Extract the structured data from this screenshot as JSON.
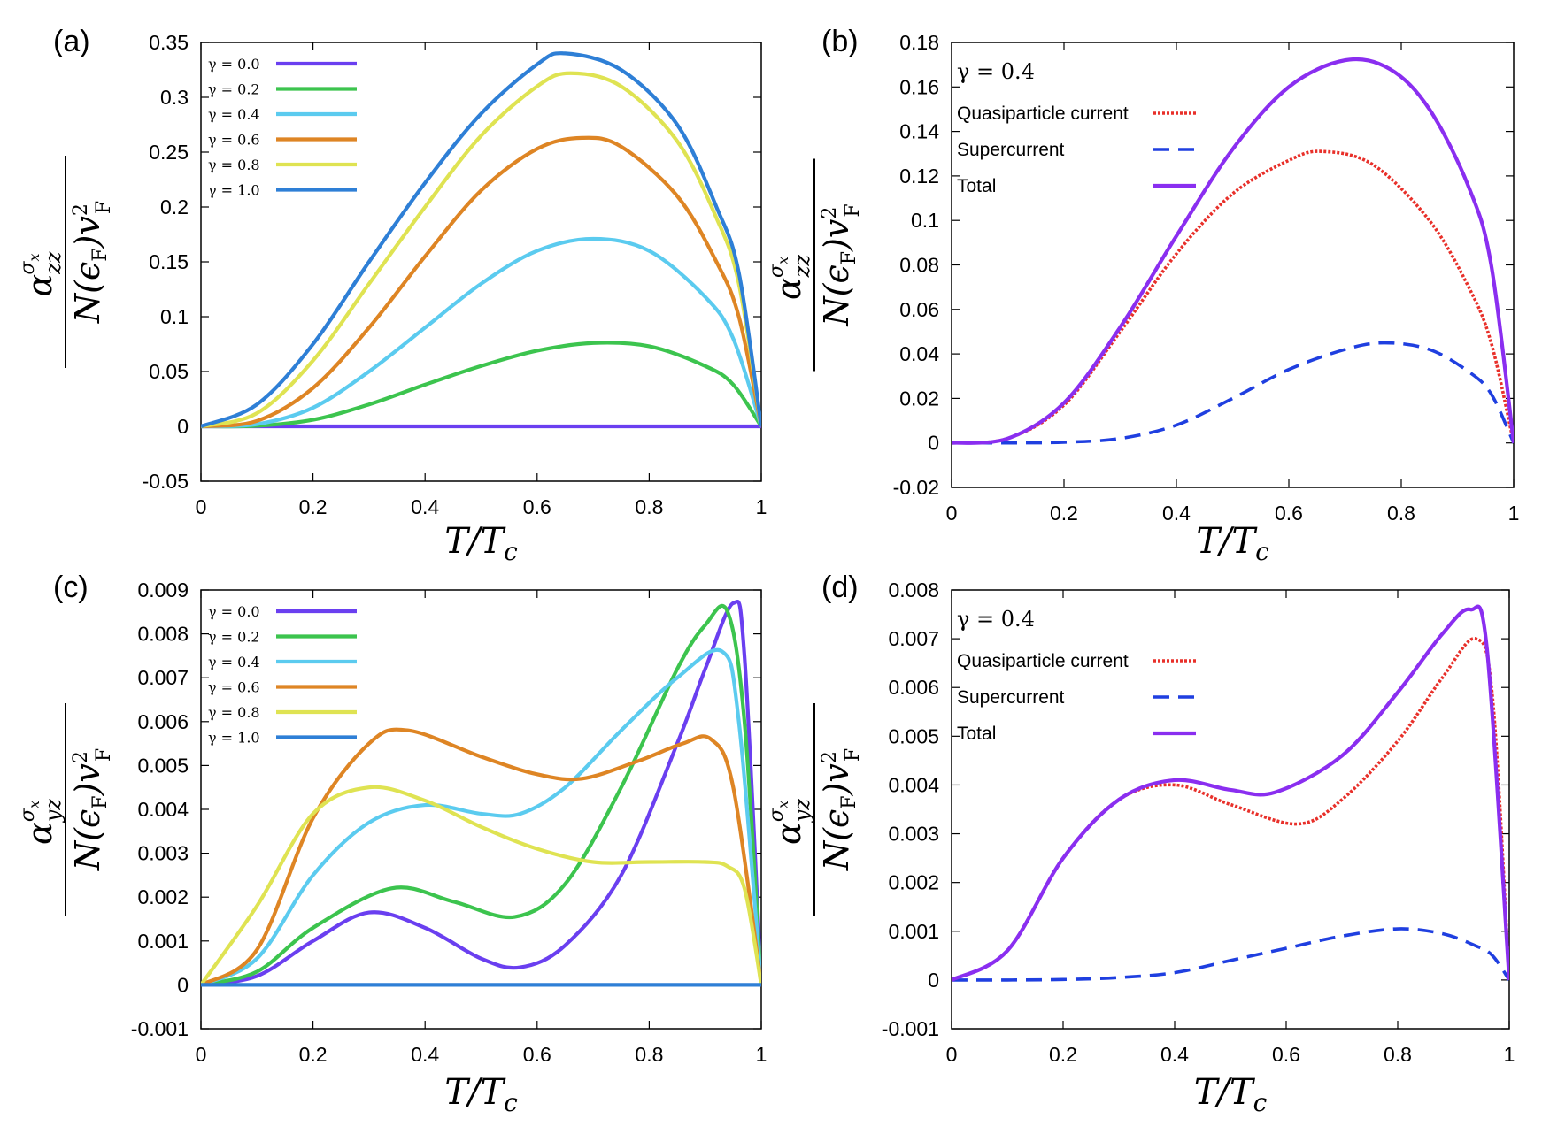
{
  "chart_data": [
    {
      "id": "a",
      "type": "line",
      "panel_label": "(a)",
      "xlabel": "T/Tc",
      "ylabel": "α_zz^σx / N(εF) vF²",
      "xlim": [
        0,
        1
      ],
      "ylim": [
        -0.05,
        0.35
      ],
      "xticks": [
        "0",
        "0.2",
        "0.4",
        "0.6",
        "0.8",
        "1"
      ],
      "yticks": [
        "-0.05",
        "0",
        "0.05",
        "0.1",
        "0.15",
        "0.2",
        "0.25",
        "0.3",
        "0.35"
      ],
      "legend_position": "top-left",
      "series": [
        {
          "name": "γ = 0.0",
          "color": "#6a3ff0",
          "dash": "solid",
          "x": [
            0,
            0.2,
            0.4,
            0.6,
            0.8,
            1.0
          ],
          "y": [
            0,
            0,
            0,
            0,
            0,
            0
          ]
        },
        {
          "name": "γ = 0.2",
          "color": "#3cc44e",
          "dash": "solid",
          "x": [
            0,
            0.1,
            0.2,
            0.3,
            0.4,
            0.5,
            0.6,
            0.7,
            0.8,
            0.9,
            0.95,
            1.0
          ],
          "y": [
            0,
            0.0005,
            0.006,
            0.02,
            0.038,
            0.055,
            0.069,
            0.076,
            0.073,
            0.055,
            0.038,
            0
          ]
        },
        {
          "name": "γ = 0.4",
          "color": "#5bcbef",
          "dash": "solid",
          "x": [
            0,
            0.1,
            0.2,
            0.3,
            0.4,
            0.5,
            0.6,
            0.7,
            0.8,
            0.9,
            0.95,
            1.0
          ],
          "y": [
            0,
            0.002,
            0.017,
            0.05,
            0.09,
            0.13,
            0.16,
            0.171,
            0.16,
            0.118,
            0.08,
            0
          ]
        },
        {
          "name": "γ = 0.6",
          "color": "#de8524",
          "dash": "solid",
          "x": [
            0,
            0.1,
            0.2,
            0.3,
            0.4,
            0.5,
            0.6,
            0.68,
            0.75,
            0.85,
            0.92,
            0.96,
            1.0
          ],
          "y": [
            0,
            0.005,
            0.035,
            0.09,
            0.155,
            0.215,
            0.253,
            0.263,
            0.255,
            0.21,
            0.15,
            0.1,
            0
          ]
        },
        {
          "name": "γ = 0.8",
          "color": "#dfe352",
          "dash": "solid",
          "x": [
            0,
            0.1,
            0.2,
            0.3,
            0.4,
            0.5,
            0.6,
            0.66,
            0.75,
            0.85,
            0.92,
            0.96,
            1.0
          ],
          "y": [
            0,
            0.012,
            0.06,
            0.13,
            0.2,
            0.265,
            0.31,
            0.322,
            0.31,
            0.26,
            0.19,
            0.13,
            0
          ]
        },
        {
          "name": "γ = 1.0",
          "color": "#2e7fd6",
          "dash": "solid",
          "x": [
            0,
            0.1,
            0.2,
            0.3,
            0.4,
            0.5,
            0.6,
            0.65,
            0.75,
            0.85,
            0.92,
            0.96,
            1.0
          ],
          "y": [
            0,
            0.02,
            0.075,
            0.15,
            0.222,
            0.285,
            0.33,
            0.34,
            0.325,
            0.275,
            0.2,
            0.14,
            0
          ]
        }
      ]
    },
    {
      "id": "b",
      "type": "line",
      "panel_label": "(b)",
      "note": "γ = 0.4",
      "xlabel": "T/Tc",
      "ylabel": "α_zz^σx / N(εF) vF²",
      "xlim": [
        0,
        1
      ],
      "ylim": [
        -0.02,
        0.18
      ],
      "xticks": [
        "0",
        "0.2",
        "0.4",
        "0.6",
        "0.8",
        "1"
      ],
      "yticks": [
        "-0.02",
        "0",
        "0.02",
        "0.04",
        "0.06",
        "0.08",
        "0.1",
        "0.12",
        "0.14",
        "0.16",
        "0.18"
      ],
      "legend_position": "top-left",
      "series": [
        {
          "name": "Quasiparticle current",
          "color": "#e8302a",
          "dash": "dotted",
          "x": [
            0,
            0.1,
            0.2,
            0.3,
            0.4,
            0.5,
            0.6,
            0.66,
            0.75,
            0.85,
            0.92,
            0.96,
            1.0
          ],
          "y": [
            0,
            0.002,
            0.017,
            0.05,
            0.085,
            0.112,
            0.127,
            0.131,
            0.125,
            0.1,
            0.07,
            0.045,
            0
          ]
        },
        {
          "name": "Supercurrent",
          "color": "#1f3fe0",
          "dash": "dashed",
          "x": [
            0,
            0.1,
            0.2,
            0.3,
            0.4,
            0.5,
            0.6,
            0.7,
            0.77,
            0.85,
            0.92,
            0.96,
            1.0
          ],
          "y": [
            0,
            0,
            0.0003,
            0.002,
            0.008,
            0.02,
            0.033,
            0.042,
            0.045,
            0.042,
            0.032,
            0.022,
            0
          ]
        },
        {
          "name": "Total",
          "color": "#8a2ef0",
          "dash": "solid",
          "x": [
            0,
            0.1,
            0.2,
            0.3,
            0.4,
            0.5,
            0.6,
            0.7,
            0.78,
            0.85,
            0.92,
            0.96,
            1.0
          ],
          "y": [
            0,
            0.002,
            0.018,
            0.052,
            0.093,
            0.132,
            0.16,
            0.172,
            0.168,
            0.15,
            0.115,
            0.08,
            0
          ]
        }
      ]
    },
    {
      "id": "c",
      "type": "line",
      "panel_label": "(c)",
      "xlabel": "T/Tc",
      "ylabel": "α_yz^σx / N(εF) vF²",
      "xlim": [
        0,
        1
      ],
      "ylim": [
        -0.001,
        0.009
      ],
      "xticks": [
        "0",
        "0.2",
        "0.4",
        "0.6",
        "0.8",
        "1"
      ],
      "yticks": [
        "-0.001",
        "0",
        "0.001",
        "0.002",
        "0.003",
        "0.004",
        "0.005",
        "0.006",
        "0.007",
        "0.008",
        "0.009"
      ],
      "legend_position": "top-left",
      "series": [
        {
          "name": "γ = 0.0",
          "color": "#6a3ff0",
          "dash": "solid",
          "x": [
            0,
            0.1,
            0.2,
            0.3,
            0.4,
            0.5,
            0.57,
            0.65,
            0.75,
            0.85,
            0.9,
            0.95,
            0.97,
            1.0
          ],
          "y": [
            0,
            0.0002,
            0.001,
            0.00165,
            0.0013,
            0.0006,
            0.0004,
            0.0009,
            0.0025,
            0.0055,
            0.0072,
            0.0087,
            0.0075,
            0
          ]
        },
        {
          "name": "γ = 0.2",
          "color": "#3cc44e",
          "dash": "solid",
          "x": [
            0,
            0.1,
            0.2,
            0.34,
            0.45,
            0.56,
            0.65,
            0.75,
            0.85,
            0.9,
            0.94,
            0.97,
            1.0
          ],
          "y": [
            0,
            0.0003,
            0.0013,
            0.0022,
            0.0019,
            0.00155,
            0.0023,
            0.0045,
            0.0072,
            0.0082,
            0.0085,
            0.006,
            0
          ]
        },
        {
          "name": "γ = 0.4",
          "color": "#5bcbef",
          "dash": "solid",
          "x": [
            0,
            0.1,
            0.2,
            0.3,
            0.4,
            0.5,
            0.57,
            0.65,
            0.75,
            0.85,
            0.93,
            0.96,
            1.0
          ],
          "y": [
            0,
            0.0006,
            0.0025,
            0.0037,
            0.0041,
            0.0039,
            0.0039,
            0.0045,
            0.0058,
            0.007,
            0.0076,
            0.006,
            0
          ]
        },
        {
          "name": "γ = 0.6",
          "color": "#de8524",
          "dash": "solid",
          "x": [
            0,
            0.1,
            0.2,
            0.3,
            0.37,
            0.5,
            0.6,
            0.68,
            0.78,
            0.86,
            0.91,
            0.95,
            1.0
          ],
          "y": [
            0,
            0.0008,
            0.0038,
            0.0055,
            0.0058,
            0.0052,
            0.0048,
            0.0047,
            0.0051,
            0.0055,
            0.0056,
            0.0045,
            0
          ]
        },
        {
          "name": "γ = 0.8",
          "color": "#dfe352",
          "dash": "solid",
          "x": [
            0,
            0.1,
            0.2,
            0.3,
            0.4,
            0.5,
            0.6,
            0.7,
            0.8,
            0.9,
            0.94,
            0.97,
            1.0
          ],
          "y": [
            0,
            0.0018,
            0.0039,
            0.0045,
            0.0042,
            0.0036,
            0.0031,
            0.0028,
            0.0028,
            0.0028,
            0.0027,
            0.0022,
            0
          ]
        },
        {
          "name": "γ = 1.0",
          "color": "#2e7fd6",
          "dash": "solid",
          "x": [
            0,
            0.2,
            0.4,
            0.6,
            0.8,
            1.0
          ],
          "y": [
            0,
            0,
            0,
            0,
            0,
            0
          ]
        }
      ]
    },
    {
      "id": "d",
      "type": "line",
      "panel_label": "(d)",
      "note": "γ = 0.4",
      "xlabel": "T/Tc",
      "ylabel": "α_yz^σx / N(εF) vF²",
      "xlim": [
        0,
        1
      ],
      "ylim": [
        -0.001,
        0.008
      ],
      "xticks": [
        "0",
        "0.2",
        "0.4",
        "0.6",
        "0.8",
        "1"
      ],
      "yticks": [
        "-0.001",
        "0",
        "0.001",
        "0.002",
        "0.003",
        "0.004",
        "0.005",
        "0.006",
        "0.007",
        "0.008"
      ],
      "legend_position": "top-left",
      "series": [
        {
          "name": "Quasiparticle current",
          "color": "#e8302a",
          "dash": "dotted",
          "x": [
            0,
            0.1,
            0.2,
            0.3,
            0.4,
            0.5,
            0.62,
            0.7,
            0.8,
            0.88,
            0.94,
            0.97,
            1.0
          ],
          "y": [
            0,
            0.0006,
            0.0025,
            0.0037,
            0.004,
            0.0036,
            0.0032,
            0.0037,
            0.0049,
            0.0062,
            0.007,
            0.0058,
            0
          ]
        },
        {
          "name": "Supercurrent",
          "color": "#1f3fe0",
          "dash": "dashed",
          "x": [
            0,
            0.1,
            0.2,
            0.3,
            0.4,
            0.5,
            0.6,
            0.7,
            0.8,
            0.88,
            0.94,
            0.97,
            1.0
          ],
          "y": [
            0,
            0,
            1e-05,
            5e-05,
            0.00015,
            0.0004,
            0.00065,
            0.0009,
            0.00105,
            0.00095,
            0.0007,
            0.0005,
            0
          ]
        },
        {
          "name": "Total",
          "color": "#8a2ef0",
          "dash": "solid",
          "x": [
            0,
            0.1,
            0.2,
            0.3,
            0.4,
            0.5,
            0.58,
            0.7,
            0.8,
            0.88,
            0.93,
            0.96,
            1.0
          ],
          "y": [
            0,
            0.0006,
            0.0025,
            0.0037,
            0.0041,
            0.0039,
            0.00385,
            0.0046,
            0.0059,
            0.0071,
            0.0076,
            0.0068,
            0
          ]
        }
      ]
    }
  ]
}
